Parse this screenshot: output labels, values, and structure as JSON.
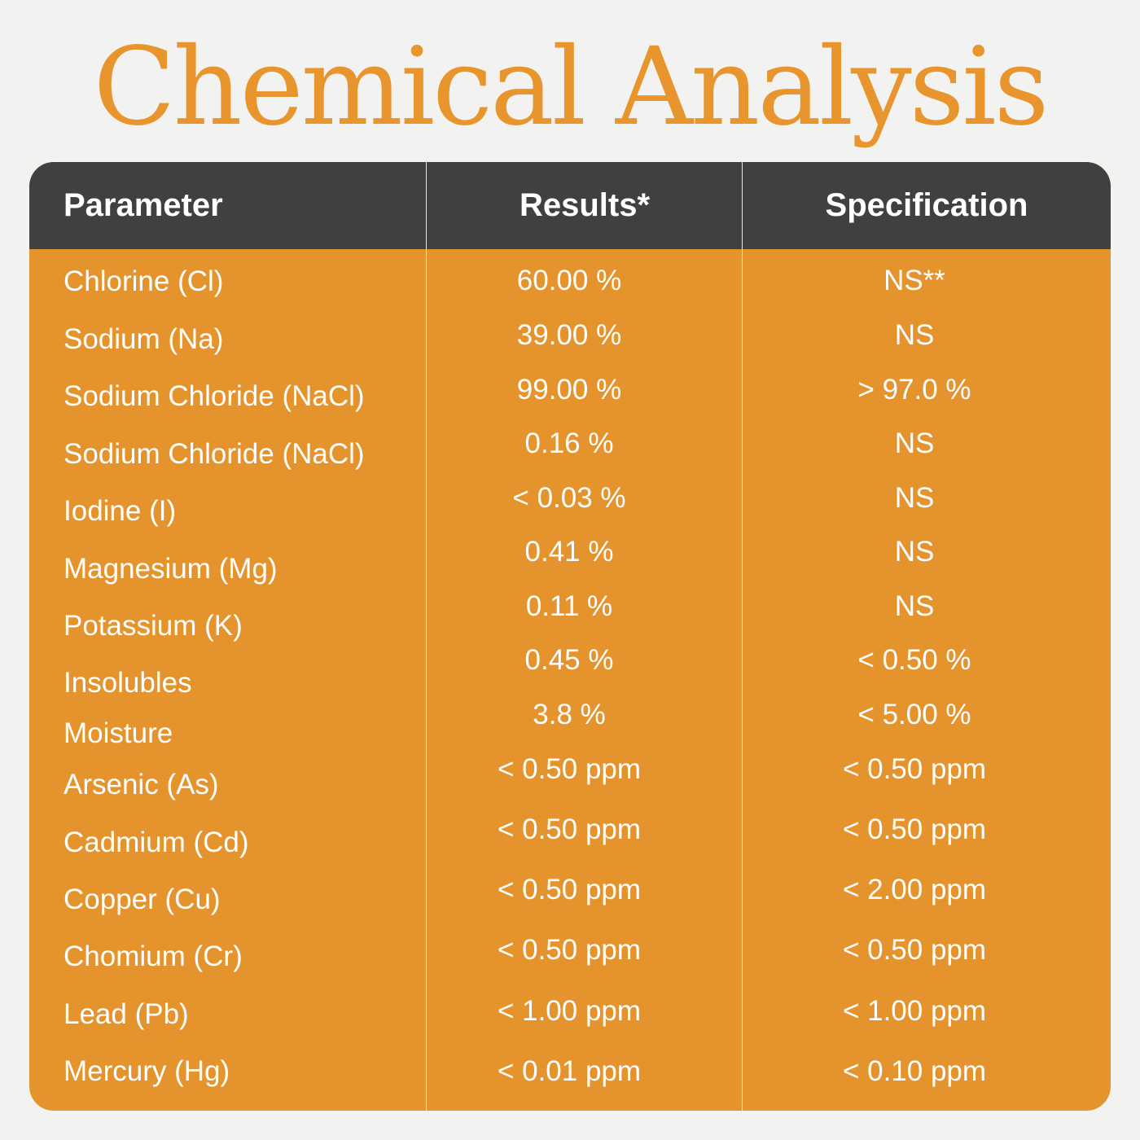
{
  "title": "Chemical Analysis",
  "colors": {
    "accent": "#e5932d",
    "header_bg": "#404040",
    "title": "#e8952e",
    "background": "#f2f2f0"
  },
  "headers": {
    "parameter": "Parameter",
    "results": "Results*",
    "specification": "Specification"
  },
  "rows": [
    {
      "parameter": "Chlorine (Cl)",
      "result": "60.00 %",
      "spec": "NS**"
    },
    {
      "parameter": "Sodium (Na)",
      "result": "39.00 %",
      "spec": "NS"
    },
    {
      "parameter": "Sodium Chloride (NaCl)",
      "result": "99.00 %",
      "spec": "> 97.0 %"
    },
    {
      "parameter": "Sodium Chloride (NaCl)",
      "result": "0.16 %",
      "spec": "NS"
    },
    {
      "parameter": "Iodine (I)",
      "result": "< 0.03 %",
      "spec": "NS"
    },
    {
      "parameter": "Magnesium (Mg)",
      "result": "0.41 %",
      "spec": "NS"
    },
    {
      "parameter": "Potassium (K)",
      "result": "0.11 %",
      "spec": "NS"
    },
    {
      "parameter": "Insolubles",
      "result": "0.45 %",
      "spec": "< 0.50 %"
    },
    {
      "parameter": "Moisture",
      "result": "3.8 %",
      "spec": "< 5.00 %"
    },
    {
      "parameter": "Arsenic (As)",
      "result": "< 0.50 ppm",
      "spec": "< 0.50 ppm"
    },
    {
      "parameter": "Cadmium (Cd)",
      "result": "< 0.50 ppm",
      "spec": "< 0.50 ppm"
    },
    {
      "parameter": "Copper (Cu)",
      "result": "< 0.50 ppm",
      "spec": "< 2.00 ppm"
    },
    {
      "parameter": "Chomium (Cr)",
      "result": "< 0.50 ppm",
      "spec": "< 0.50 ppm"
    },
    {
      "parameter": "Lead (Pb)",
      "result": "< 1.00 ppm",
      "spec": "< 1.00 ppm"
    },
    {
      "parameter": "Mercury (Hg)",
      "result": "< 0.01 ppm",
      "spec": "< 0.10 ppm"
    }
  ]
}
